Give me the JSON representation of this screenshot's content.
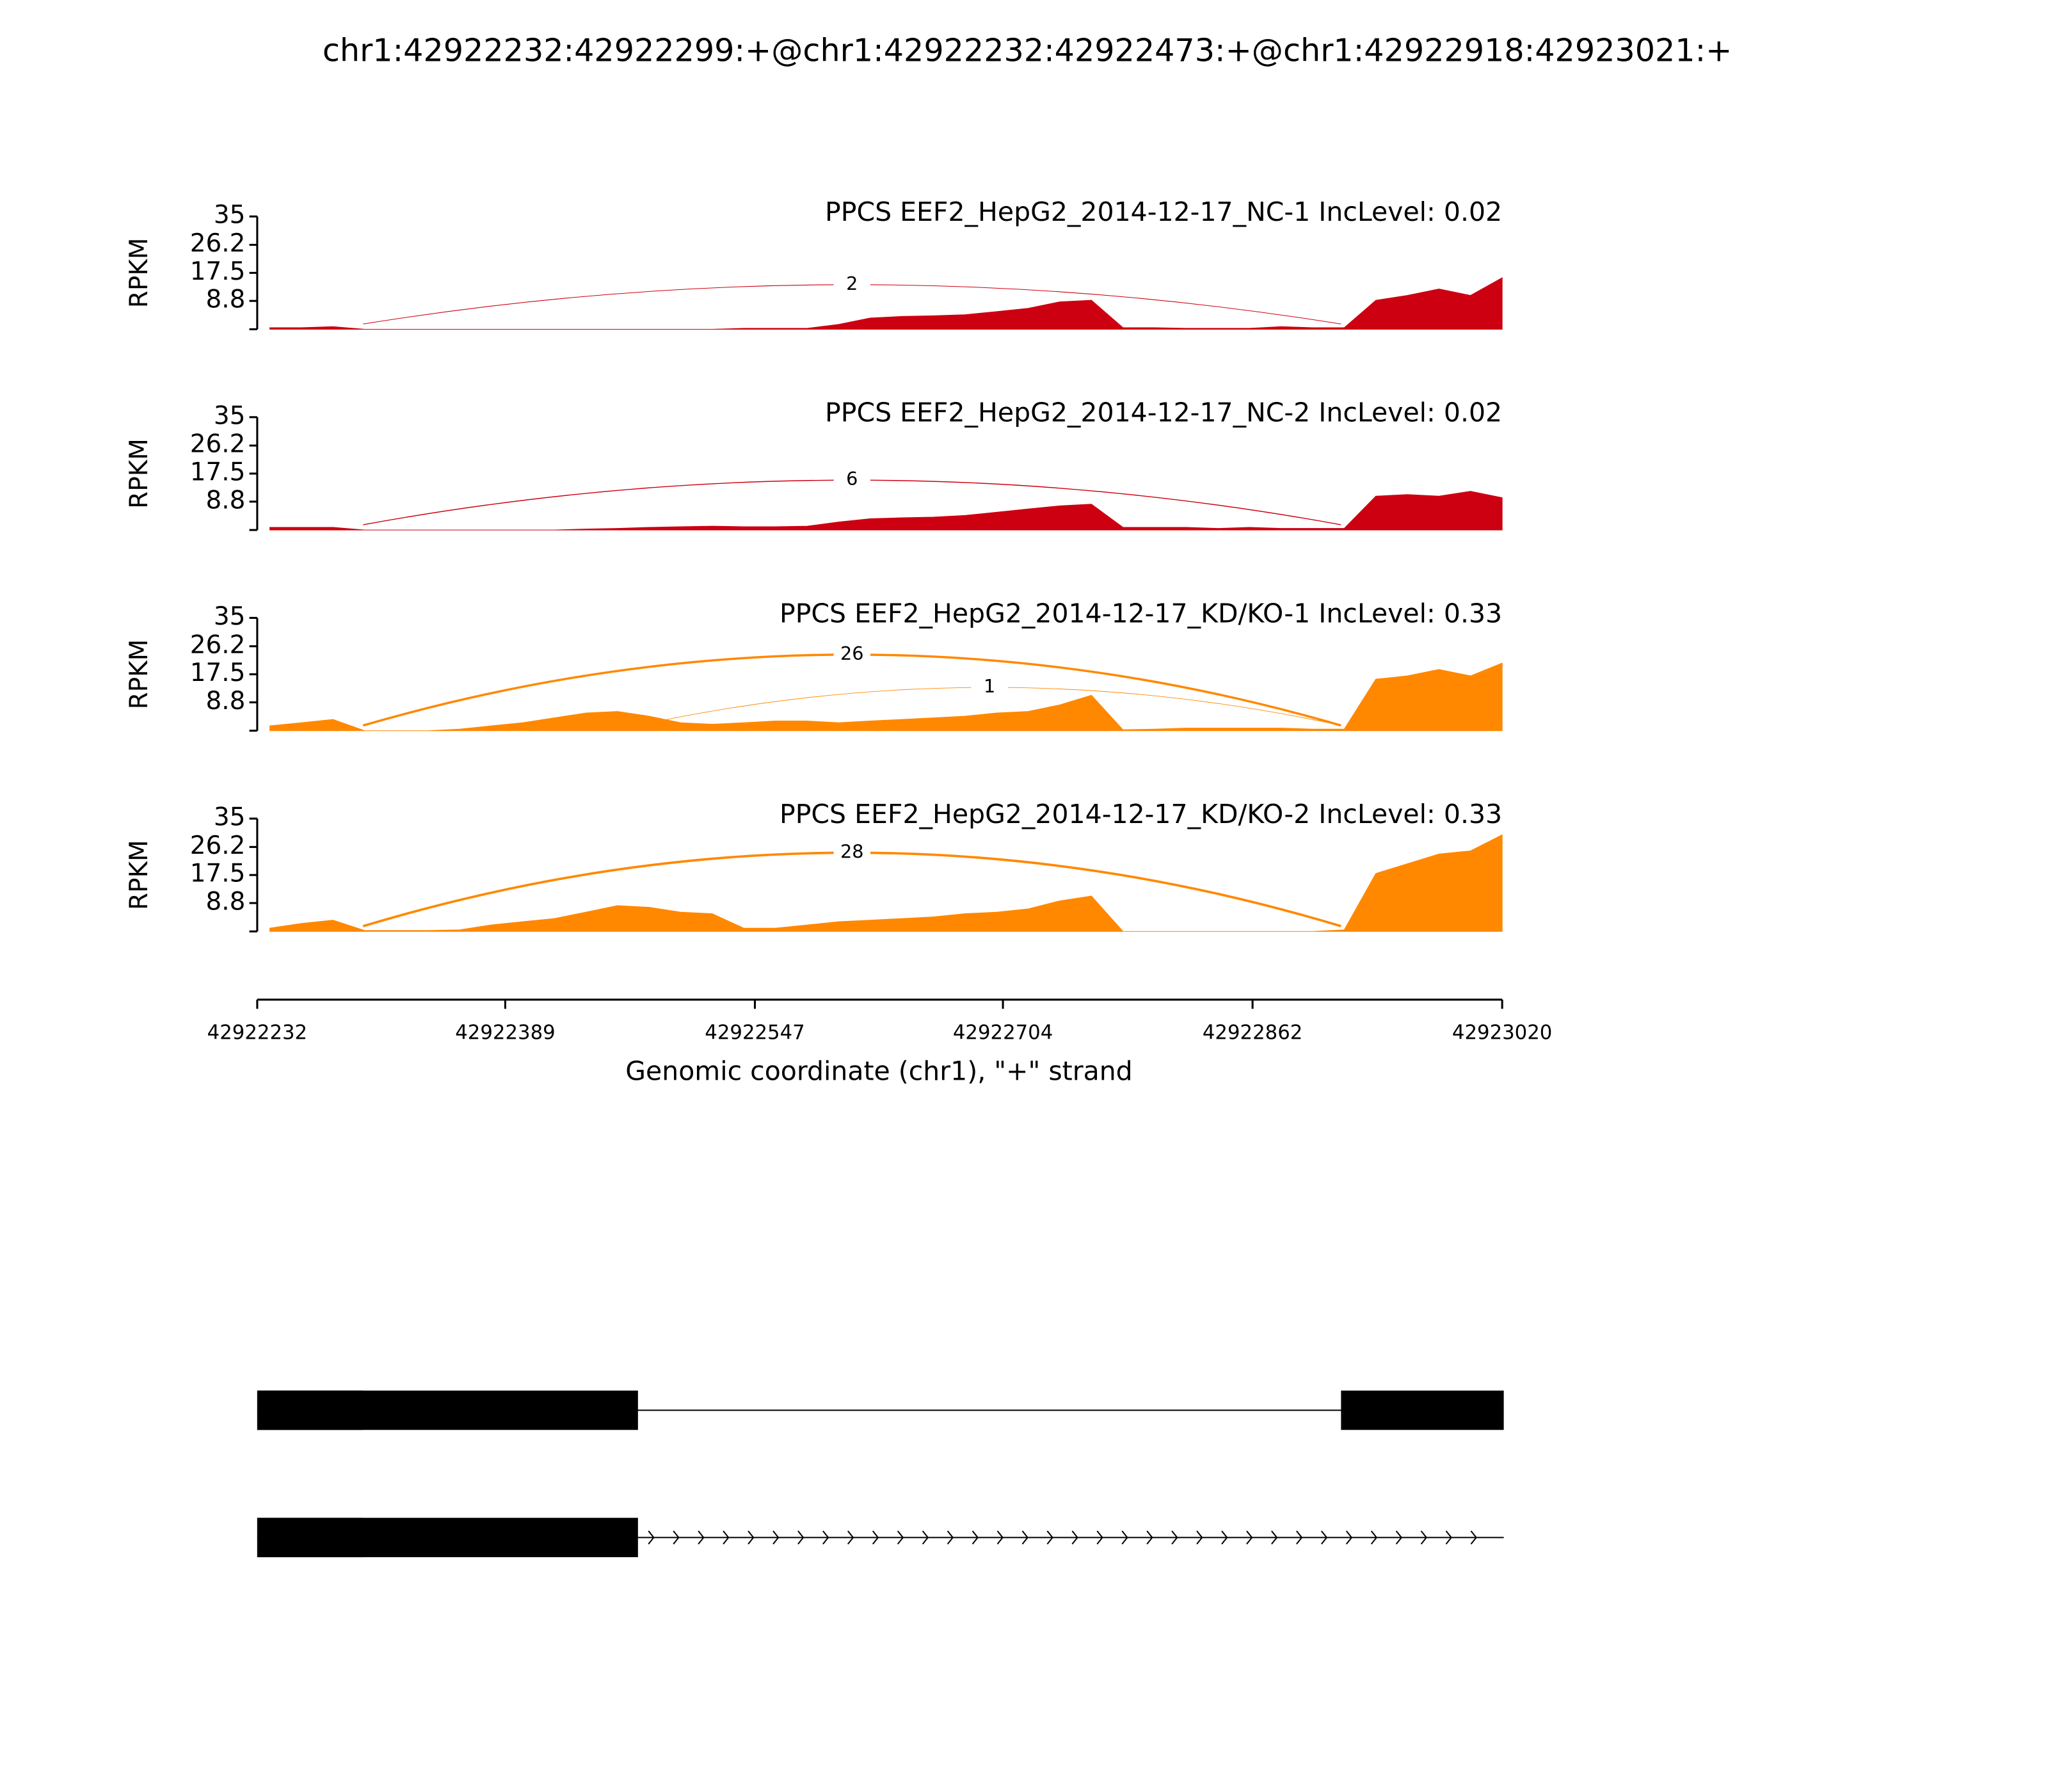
{
  "title": "chr1:42922232:42922299:+@chr1:42922232:42922473:+@chr1:42922918:42923021:+",
  "chart_data": [
    {
      "type": "area",
      "title": "PPCS EEF2_HepG2_2014-12-17_NC-1 IncLevel: 0.02",
      "ylabel": "RPKM",
      "color": "#cc0011",
      "ylim": [
        0,
        35
      ],
      "yticks": [
        8.8,
        17.5,
        26.2,
        35
      ],
      "x": [
        42922240,
        42922260,
        42922280,
        42922300,
        42922320,
        42922340,
        42922360,
        42922380,
        42922400,
        42922420,
        42922440,
        42922460,
        42922480,
        42922500,
        42922520,
        42922540,
        42922560,
        42922580,
        42922600,
        42922620,
        42922640,
        42922660,
        42922680,
        42922700,
        42922720,
        42922740,
        42922760,
        42922780,
        42922800,
        42922820,
        42922840,
        42922860,
        42922880,
        42922900,
        42922920,
        42922940,
        42922960,
        42922980,
        42923000,
        42923020
      ],
      "values": [
        0.5,
        0.5,
        0.8,
        0,
        0,
        0,
        0,
        0,
        0,
        0,
        0,
        0,
        0,
        0,
        0,
        0.3,
        0.3,
        0.3,
        1.5,
        3.5,
        4,
        4.2,
        4.5,
        5.5,
        6.5,
        8.5,
        9,
        0.5,
        0.5,
        0.3,
        0.3,
        0.3,
        0.8,
        0.5,
        0.5,
        9,
        10.5,
        12.5,
        10.5,
        16
      ],
      "junctions": [
        {
          "start": 42922299,
          "end": 42922918,
          "count": 2
        }
      ]
    },
    {
      "type": "area",
      "title": "PPCS EEF2_HepG2_2014-12-17_NC-2 IncLevel: 0.02",
      "ylabel": "RPKM",
      "color": "#cc0011",
      "ylim": [
        0,
        35
      ],
      "yticks": [
        8.8,
        17.5,
        26.2,
        35
      ],
      "x": [
        42922240,
        42922260,
        42922280,
        42922300,
        42922320,
        42922340,
        42922360,
        42922380,
        42922400,
        42922420,
        42922440,
        42922460,
        42922480,
        42922500,
        42922520,
        42922540,
        42922560,
        42922580,
        42922600,
        42922620,
        42922640,
        42922660,
        42922680,
        42922700,
        42922720,
        42922740,
        42922760,
        42922780,
        42922800,
        42922820,
        42922840,
        42922860,
        42922880,
        42922900,
        42922920,
        42922940,
        42922960,
        42922980,
        42923000,
        42923020
      ],
      "values": [
        0.8,
        0.8,
        0.8,
        0,
        0,
        0,
        0,
        0,
        0,
        0,
        0.3,
        0.5,
        0.8,
        1,
        1.2,
        1,
        1,
        1.2,
        2.5,
        3.5,
        3.8,
        4,
        4.5,
        5.5,
        6.5,
        7.5,
        8,
        0.8,
        0.8,
        0.8,
        0.5,
        0.8,
        0.5,
        0.5,
        0.5,
        10.5,
        11,
        10.5,
        12,
        10
      ],
      "junctions": [
        {
          "start": 42922299,
          "end": 42922918,
          "count": 6
        }
      ]
    },
    {
      "type": "area",
      "title": "PPCS EEF2_HepG2_2014-12-17_KD/KO-1 IncLevel: 0.33",
      "ylabel": "RPKM",
      "color": "#ff8800",
      "ylim": [
        0,
        35
      ],
      "yticks": [
        8.8,
        17.5,
        26.2,
        35
      ],
      "x": [
        42922240,
        42922260,
        42922280,
        42922300,
        42922320,
        42922340,
        42922360,
        42922380,
        42922400,
        42922420,
        42922440,
        42922460,
        42922480,
        42922500,
        42922520,
        42922540,
        42922560,
        42922580,
        42922600,
        42922620,
        42922640,
        42922660,
        42922680,
        42922700,
        42922720,
        42922740,
        42922760,
        42922780,
        42922800,
        42922820,
        42922840,
        42922860,
        42922880,
        42922900,
        42922920,
        42922940,
        42922960,
        42922980,
        42923000,
        42923020
      ],
      "values": [
        1.5,
        2.5,
        3.5,
        0,
        0,
        0,
        0.5,
        1.5,
        2.5,
        4,
        5.5,
        6,
        4.5,
        2.5,
        2,
        2.5,
        3,
        3,
        2.5,
        3,
        3.5,
        4,
        4.5,
        5.5,
        6,
        8,
        11,
        0.3,
        0.5,
        0.8,
        0.8,
        0.8,
        0.8,
        0.5,
        0.5,
        16,
        17,
        19,
        17,
        21
      ],
      "junctions": [
        {
          "start": 42922299,
          "end": 42922918,
          "count": 26
        },
        {
          "start": 42922473,
          "end": 42922918,
          "count": 1
        }
      ]
    },
    {
      "type": "area",
      "title": "PPCS EEF2_HepG2_2014-12-17_KD/KO-2 IncLevel: 0.33",
      "ylabel": "RPKM",
      "color": "#ff8800",
      "ylim": [
        0,
        35
      ],
      "yticks": [
        8.8,
        17.5,
        26.2,
        35
      ],
      "x": [
        42922240,
        42922260,
        42922280,
        42922300,
        42922320,
        42922340,
        42922360,
        42922380,
        42922400,
        42922420,
        42922440,
        42922460,
        42922480,
        42922500,
        42922520,
        42922540,
        42922560,
        42922580,
        42922600,
        42922620,
        42922640,
        42922660,
        42922680,
        42922700,
        42922720,
        42922740,
        42922760,
        42922780,
        42922800,
        42922820,
        42922840,
        42922860,
        42922880,
        42922900,
        42922920,
        42922940,
        42922960,
        42922980,
        42923000,
        42923020
      ],
      "values": [
        1,
        2.5,
        3.5,
        0.3,
        0.3,
        0.3,
        0.5,
        2,
        3,
        4,
        6,
        8,
        7.5,
        6,
        5.5,
        1,
        1,
        2,
        3,
        3.5,
        4,
        4.5,
        5.5,
        6,
        7,
        9.5,
        11,
        0,
        0,
        0,
        0,
        0,
        0,
        0,
        0.5,
        18,
        21,
        24,
        25,
        30
      ],
      "junctions": [
        {
          "start": 42922299,
          "end": 42922918,
          "count": 28
        }
      ]
    }
  ],
  "x_axis": {
    "label": "Genomic coordinate (chr1), \"+\" strand",
    "xlim": [
      42922232,
      42923020
    ],
    "xticks": [
      42922232,
      42922389,
      42922547,
      42922704,
      42922862,
      42923020
    ]
  },
  "gene_track": {
    "transcripts": [
      {
        "exons": [
          [
            42922232,
            42922299
          ],
          [
            42922232,
            42922473
          ],
          [
            42922918,
            42923021
          ]
        ],
        "span": [
          42922232,
          42923021
        ]
      },
      {
        "exons": [
          [
            42922232,
            42922299
          ],
          [
            42922232,
            42922473
          ]
        ],
        "span": [
          42922232,
          42923021
        ]
      }
    ]
  }
}
